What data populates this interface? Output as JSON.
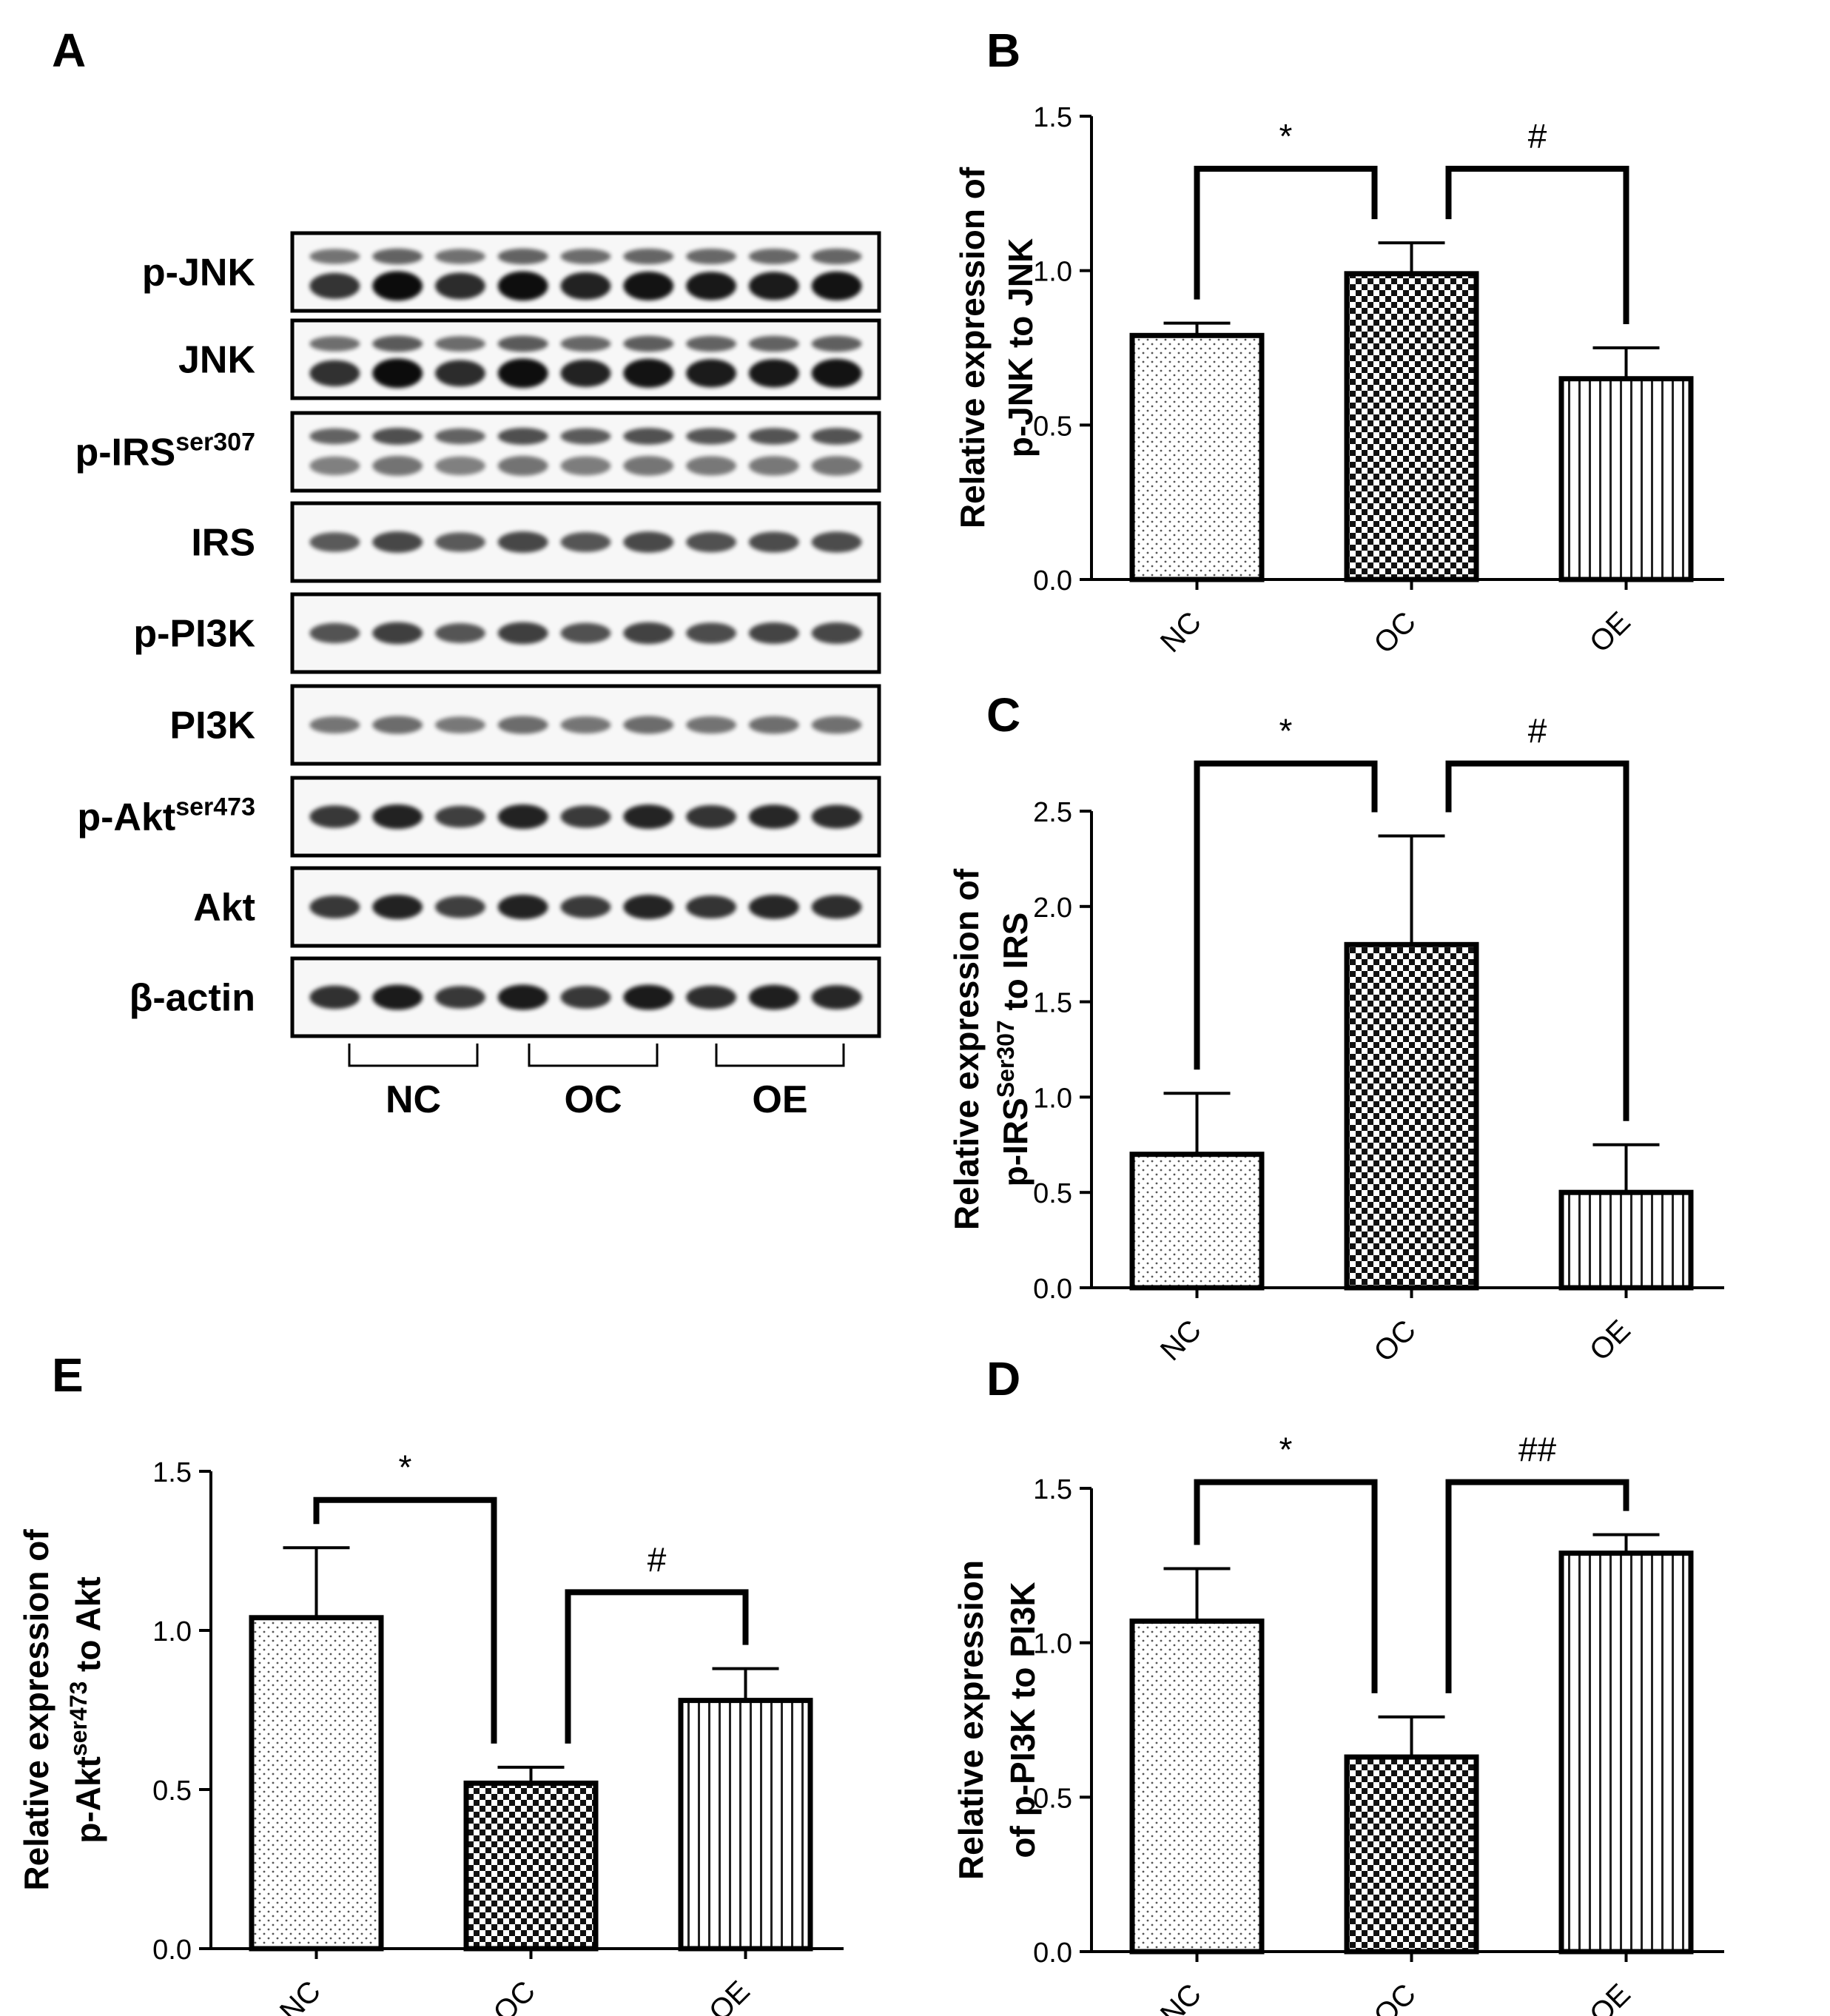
{
  "blot": {
    "panel_letter": "A",
    "rows": [
      {
        "label": "p-JNK",
        "sup": "",
        "top_band": 0.55,
        "bottom_band": 1.0,
        "single": false
      },
      {
        "label": "JNK",
        "sup": "",
        "top_band": 0.6,
        "bottom_band": 1.0,
        "single": false
      },
      {
        "label": "p-IRS",
        "sup": "ser307",
        "top_band": 0.7,
        "bottom_band": 0.35,
        "single": false
      },
      {
        "label": "IRS",
        "sup": "",
        "top_band": 0.6,
        "bottom_band": 0,
        "single": true
      },
      {
        "label": "p-PI3K",
        "sup": "",
        "top_band": 0.65,
        "bottom_band": 0,
        "single": true
      },
      {
        "label": "PI3K",
        "sup": "",
        "top_band": 0.35,
        "bottom_band": 0,
        "single": true
      },
      {
        "label": "p-Akt",
        "sup": "ser473",
        "top_band": 0.85,
        "bottom_band": 0,
        "single": true
      },
      {
        "label": "Akt",
        "sup": "",
        "top_band": 0.85,
        "bottom_band": 0,
        "single": true
      },
      {
        "label": "β-actin",
        "sup": "",
        "top_band": 0.9,
        "bottom_band": 0,
        "single": true
      }
    ],
    "groups": [
      "NC",
      "OC",
      "OE"
    ],
    "lanes_per_group": 3
  },
  "patterns": {
    "NC": "dots",
    "OC": "checker",
    "OE": "vlines"
  },
  "chart_data": [
    {
      "id": "B",
      "panel_letter": "B",
      "type": "bar",
      "categories": [
        "NC",
        "OC",
        "OE"
      ],
      "values": [
        0.79,
        0.99,
        0.65
      ],
      "errors": [
        0.04,
        0.1,
        0.1
      ],
      "ylim": [
        0,
        1.5
      ],
      "yticks": [
        "0.0",
        "0.5",
        "1.0",
        "1.5"
      ],
      "ylabel_lines": [
        [
          {
            "t": "Relative expression of"
          }
        ],
        [
          {
            "t": "p-JNK to JNK"
          }
        ]
      ],
      "significance": [
        {
          "from": 0,
          "to": 1,
          "label": "*",
          "y": 1.33
        },
        {
          "from": 1,
          "to": 2,
          "label": "#",
          "y": 1.33
        }
      ]
    },
    {
      "id": "C",
      "panel_letter": "C",
      "type": "bar",
      "categories": [
        "NC",
        "OC",
        "OE"
      ],
      "values": [
        0.7,
        1.8,
        0.5
      ],
      "errors": [
        0.32,
        0.57,
        0.25
      ],
      "ylim": [
        0,
        2.5
      ],
      "yticks": [
        "0.0",
        "0.5",
        "1.0",
        "1.5",
        "2.0",
        "2.5"
      ],
      "ylabel_lines": [
        [
          {
            "t": "Relative expression of"
          }
        ],
        [
          {
            "t": "p-IRS"
          },
          {
            "t": "Ser307",
            "sup": true
          },
          {
            "t": " to IRS"
          }
        ]
      ],
      "significance": [
        {
          "from": 0,
          "to": 1,
          "label": "*",
          "y": 2.75
        },
        {
          "from": 1,
          "to": 2,
          "label": "#",
          "y": 2.75
        }
      ]
    },
    {
      "id": "E",
      "panel_letter": "E",
      "type": "bar",
      "categories": [
        "NC",
        "OC",
        "OE"
      ],
      "values": [
        1.04,
        0.52,
        0.78
      ],
      "errors": [
        0.22,
        0.05,
        0.1
      ],
      "ylim": [
        0,
        1.5
      ],
      "yticks": [
        "0.0",
        "0.5",
        "1.0",
        "1.5"
      ],
      "ylabel_lines": [
        [
          {
            "t": "Relative expression of"
          }
        ],
        [
          {
            "t": "p-Akt"
          },
          {
            "t": "ser473",
            "sup": true
          },
          {
            "t": " to Akt"
          }
        ]
      ],
      "significance": [
        {
          "from": 0,
          "to": 1,
          "label": "*",
          "y": 1.41
        },
        {
          "from": 1,
          "to": 2,
          "label": "#",
          "y": 1.12
        }
      ]
    },
    {
      "id": "D",
      "panel_letter": "D",
      "type": "bar",
      "categories": [
        "NC",
        "OC",
        "OE"
      ],
      "values": [
        1.07,
        0.63,
        1.29
      ],
      "errors": [
        0.17,
        0.13,
        0.06
      ],
      "ylim": [
        0,
        1.5
      ],
      "yticks": [
        "0.0",
        "0.5",
        "1.0",
        "1.5"
      ],
      "ylabel_lines": [
        [
          {
            "t": "Relative expression"
          }
        ],
        [
          {
            "t": "of p-PI3K to PI3K"
          }
        ]
      ],
      "significance": [
        {
          "from": 0,
          "to": 1,
          "label": "*",
          "y": 1.52
        },
        {
          "from": 1,
          "to": 2,
          "label": "##",
          "y": 1.52
        }
      ]
    }
  ]
}
